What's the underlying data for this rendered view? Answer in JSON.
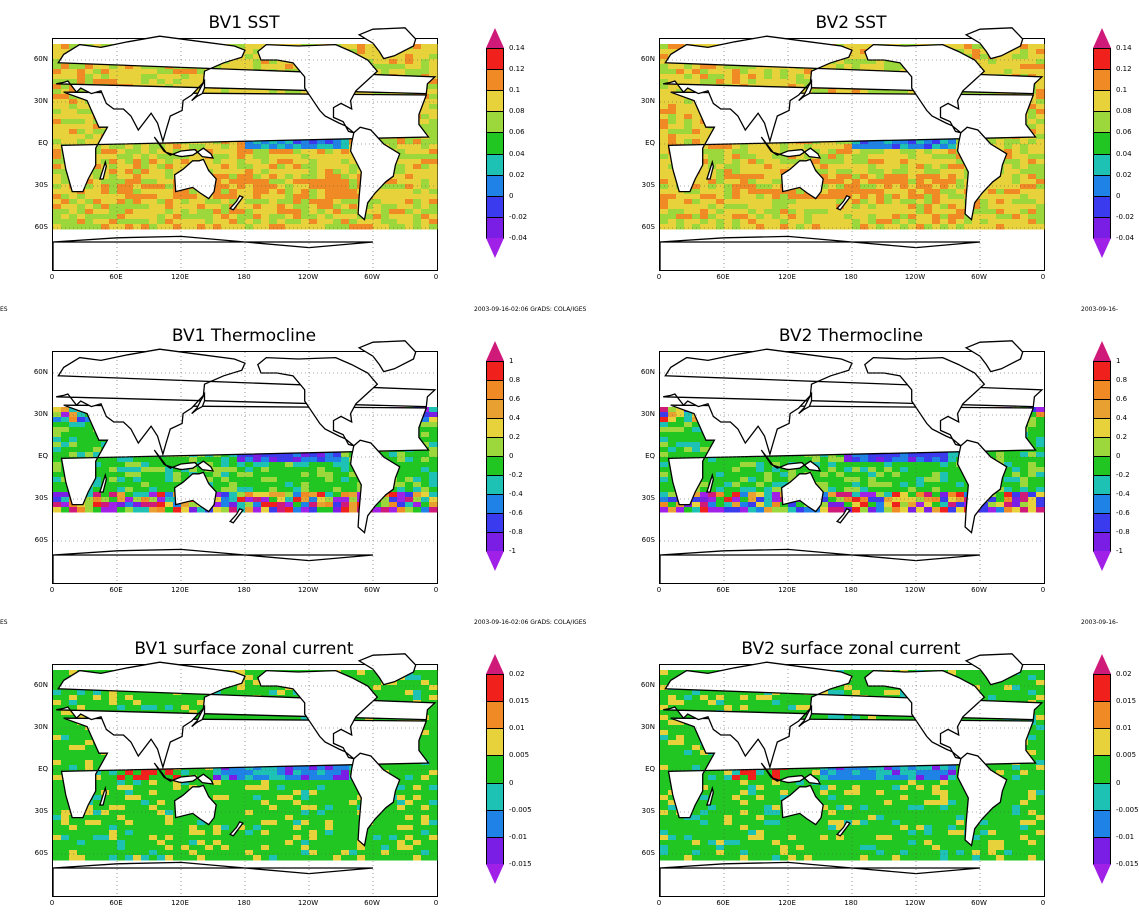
{
  "lat_labels": [
    "60N",
    "30N",
    "EQ",
    "30S",
    "60S"
  ],
  "lon_labels": [
    "0",
    "60E",
    "120E",
    "180",
    "120W",
    "60W",
    "0"
  ],
  "stamp_text": "2003-09-16-02:06 GrADS: COLA/IGES",
  "stamp_left_fragment": "ES",
  "stamp_right_fragment": "2003-09-16-",
  "panels": [
    {
      "title": "BV1  SST",
      "field": "sst",
      "seed": 11,
      "colorbar": {
        "labels": [
          "0.14",
          "0.12",
          "0.1",
          "0.08",
          "0.06",
          "0.04",
          "0.02",
          "0",
          "-0.02",
          "-0.04"
        ],
        "colors": [
          "#d01a7a",
          "#f0201c",
          "#f08a24",
          "#e8d23c",
          "#9cd83c",
          "#22c622",
          "#1ec2b4",
          "#1e82e6",
          "#3a3aee",
          "#7a1ee6",
          "#a020e8"
        ]
      }
    },
    {
      "title": "BV2  SST",
      "field": "sst",
      "seed": 23,
      "colorbar": {
        "labels": [
          "0.14",
          "0.12",
          "0.1",
          "0.08",
          "0.06",
          "0.04",
          "0.02",
          "0",
          "-0.02",
          "-0.04"
        ],
        "colors": [
          "#d01a7a",
          "#f0201c",
          "#f08a24",
          "#e8d23c",
          "#9cd83c",
          "#22c622",
          "#1ec2b4",
          "#1e82e6",
          "#3a3aee",
          "#7a1ee6",
          "#a020e8"
        ]
      }
    },
    {
      "title": "BV1  Thermocline",
      "field": "thermocline",
      "seed": 37,
      "colorbar": {
        "labels": [
          "1",
          "0.8",
          "0.6",
          "0.4",
          "0.2",
          "0",
          "-0.2",
          "-0.4",
          "-0.6",
          "-0.8",
          "-1"
        ],
        "colors": [
          "#d01a7a",
          "#f0201c",
          "#f08a24",
          "#e8a030",
          "#e8d23c",
          "#9cd83c",
          "#22c622",
          "#1ec2b4",
          "#1e82e6",
          "#3a3aee",
          "#7a1ee6",
          "#a020e8"
        ]
      }
    },
    {
      "title": "BV2  Thermocline",
      "field": "thermocline",
      "seed": 41,
      "colorbar": {
        "labels": [
          "1",
          "0.8",
          "0.6",
          "0.4",
          "0.2",
          "0",
          "-0.2",
          "-0.4",
          "-0.6",
          "-0.8",
          "-1"
        ],
        "colors": [
          "#d01a7a",
          "#f0201c",
          "#f08a24",
          "#e8a030",
          "#e8d23c",
          "#9cd83c",
          "#22c622",
          "#1ec2b4",
          "#1e82e6",
          "#3a3aee",
          "#7a1ee6",
          "#a020e8"
        ]
      }
    },
    {
      "title": "BV1  surface  zonal  current",
      "field": "current",
      "seed": 53,
      "colorbar": {
        "labels": [
          "0.02",
          "0.015",
          "0.01",
          "0.005",
          "0",
          "-0.005",
          "-0.01",
          "-0.015"
        ],
        "colors": [
          "#d01a7a",
          "#f0201c",
          "#f08a24",
          "#e8d23c",
          "#22c622",
          "#1ec2b4",
          "#1e82e6",
          "#7a1ee6",
          "#a020e8"
        ]
      }
    },
    {
      "title": "BV2  surface  zonal  current",
      "field": "current",
      "seed": 67,
      "colorbar": {
        "labels": [
          "0.02",
          "0.015",
          "0.01",
          "0.005",
          "0",
          "-0.005",
          "-0.01",
          "-0.015"
        ],
        "colors": [
          "#d01a7a",
          "#f0201c",
          "#f08a24",
          "#e8d23c",
          "#22c622",
          "#1ec2b4",
          "#1e82e6",
          "#7a1ee6",
          "#a020e8"
        ]
      }
    }
  ]
}
